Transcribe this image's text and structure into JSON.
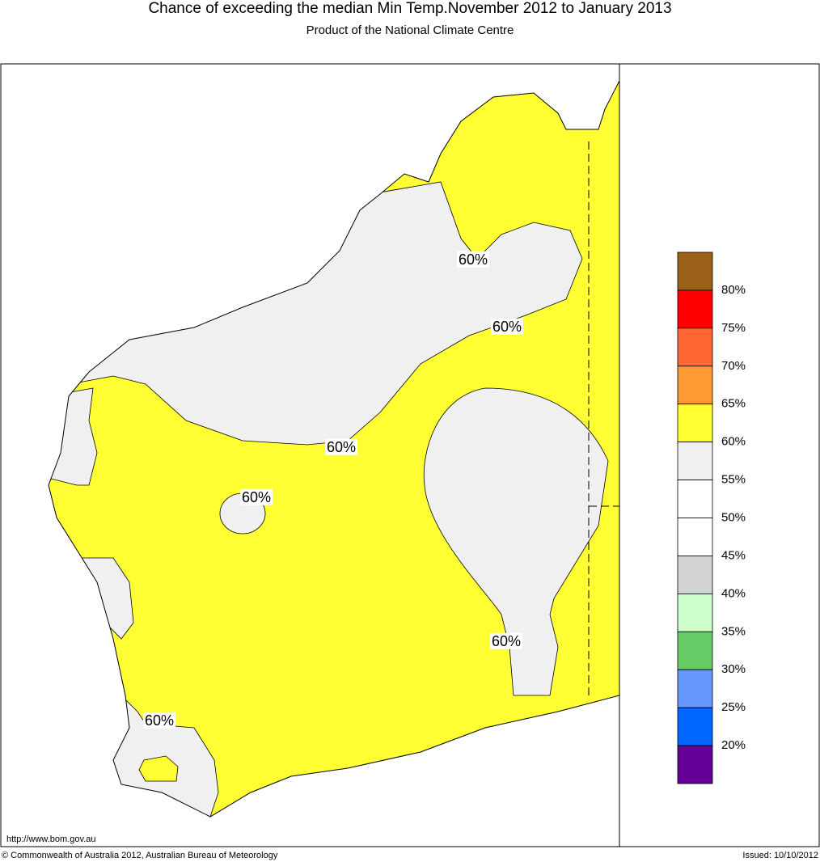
{
  "header": {
    "title": "Chance of exceeding the median Min Temp.November 2012 to January 2013",
    "subtitle": "Product of the National Climate Centre"
  },
  "map": {
    "contour_labels": [
      "60%",
      "60%",
      "60%",
      "60%",
      "60%",
      "60%"
    ]
  },
  "legend": {
    "colors": [
      "#9c6018",
      "#ff0000",
      "#ff6633",
      "#ff9933",
      "#ffff33",
      "#f0f0f0",
      "#ffffff",
      "#ffffff",
      "#d3d3d3",
      "#ccffcc",
      "#66cc66",
      "#6699ff",
      "#0066ff",
      "#660099"
    ],
    "labels": [
      "80%",
      "75%",
      "70%",
      "65%",
      "60%",
      "55%",
      "50%",
      "45%",
      "40%",
      "35%",
      "30%",
      "25%",
      "20%"
    ]
  },
  "footer": {
    "url": "http://www.bom.gov.au",
    "copyright": "© Commonwealth of Australia 2012, Australian Bureau of Meteorology",
    "issued": "Issued: 10/10/2012"
  }
}
